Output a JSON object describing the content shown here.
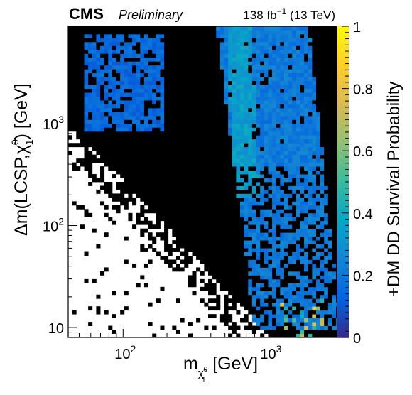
{
  "header": {
    "experiment": "CMS",
    "status": "Preliminary",
    "lumi_value": "138 fb",
    "lumi_exp": "−1",
    "lumi_energy": " (13 TeV)"
  },
  "chart_data": {
    "type": "heatmap",
    "title": "",
    "xlabel": "m",
    "xlabel_sub": "χ̃",
    "xlabel_sub_sup": "0",
    "xlabel_sub_sub": "1",
    "xlabel_unit": " [GeV]",
    "ylabel": "Δm(LCSP,χ̃",
    "ylabel_sup": "0",
    "ylabel_sub": "1",
    "ylabel_unit": ") [GeV]",
    "zlabel": "+DM DD Survival Probability",
    "x_scale": "log",
    "y_scale": "log",
    "xlim": [
      42,
      3500
    ],
    "ylim": [
      8,
      9000
    ],
    "zlim": [
      0,
      1
    ],
    "x_ticks": [
      {
        "value": 100,
        "base": "10",
        "exp": "2"
      },
      {
        "value": 1000,
        "base": "10",
        "exp": "3"
      }
    ],
    "y_ticks": [
      {
        "value": 10,
        "base": "10",
        "exp": ""
      },
      {
        "value": 100,
        "base": "10",
        "exp": "2"
      },
      {
        "value": 1000,
        "base": "10",
        "exp": "3"
      }
    ],
    "z_ticks": [
      "0",
      "0.2",
      "0.4",
      "0.6",
      "0.8",
      "1"
    ],
    "colormap": [
      "#352a87",
      "#0363e1",
      "#1485d4",
      "#06a7c6",
      "#38b99e",
      "#92bf73",
      "#d9ba56",
      "#fcce2e",
      "#f9fb0e"
    ],
    "empty_color": "#ffffff",
    "zero_color": "#000000",
    "grid": false,
    "regions": [
      {
        "name": "upper-left blue band",
        "x_range": [
          45,
          200
        ],
        "y_range": [
          900,
          8000
        ],
        "z_mean": 0.15
      },
      {
        "name": "diagonal blue band",
        "x_range": [
          400,
          2500
        ],
        "y_range": [
          8,
          8000
        ],
        "z_mean": 0.22
      },
      {
        "name": "bright ridge",
        "x_range": [
          600,
          1200
        ],
        "y_range": [
          300,
          8000
        ],
        "z_mean": 0.32
      },
      {
        "name": "excluded (zero) region",
        "x_range": [
          42,
          3500
        ],
        "y_range": [
          8,
          9000
        ],
        "z_mean": 0.0
      }
    ]
  }
}
